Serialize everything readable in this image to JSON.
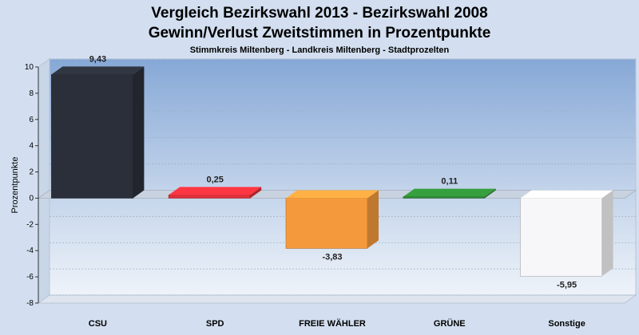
{
  "title": "Vergleich Bezirkswahl 2013 - Bezirkswahl 2008",
  "subtitle": "Gewinn/Verlust Zweitstimmen in Prozentpunkte",
  "caption": "Stimmkreis Miltenberg - Landkreis Miltenberg - Stadtprozelten",
  "chart_data": {
    "type": "bar",
    "categories": [
      "CSU",
      "SPD",
      "FREIE WÄHLER",
      "GRÜNE",
      "Sonstige"
    ],
    "values": [
      9.43,
      0.25,
      -3.83,
      0.11,
      -5.95
    ],
    "value_labels": [
      "9,43",
      "0,25",
      "-3,83",
      "0,11",
      "-5,95"
    ],
    "colors": [
      "#2b2f3a",
      "#e0303a",
      "#f59a3c",
      "#2f8a36",
      "#f7f7f9"
    ],
    "ylabel": "Prozentpunkte",
    "ylim": [
      -8,
      10
    ],
    "yticks": [
      -8,
      -6,
      -4,
      -2,
      0,
      2,
      4,
      6,
      8,
      10
    ],
    "grid": true
  }
}
